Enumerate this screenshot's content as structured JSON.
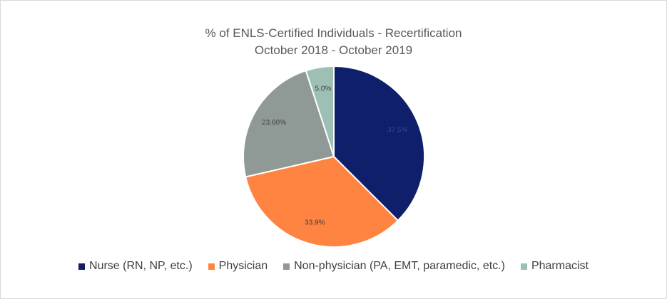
{
  "chart_data": {
    "type": "pie",
    "title": "% of ENLS-Certified Individuals - Recertification",
    "subtitle": "October 2018 - October 2019",
    "slices": [
      {
        "name": "Nurse (RN, NP, etc.)",
        "value": 37.5,
        "label": "37.5%",
        "color": "#0f1f6b",
        "label_color": "#3a4a8a"
      },
      {
        "name": "Physician",
        "value": 33.9,
        "label": "33.9%",
        "color": "#ff8442",
        "label_color": "#404040"
      },
      {
        "name": "Non-physician (PA, EMT, paramedic, etc.)",
        "value": 23.6,
        "label": "23.60%",
        "color": "#8f9a97",
        "label_color": "#404040"
      },
      {
        "name": "Pharmacist",
        "value": 5.0,
        "label": "5.0%",
        "color": "#9ebfb3",
        "label_color": "#404040"
      }
    ],
    "legend_position": "bottom",
    "start": "12 o'clock",
    "direction": "clockwise"
  }
}
